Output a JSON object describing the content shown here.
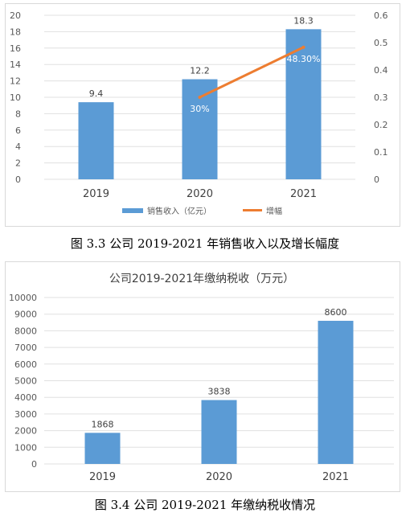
{
  "colors": {
    "bar": "#5b9bd5",
    "line": "#ed7d31",
    "grid": "#e0e0e0",
    "axis_text": "#595959"
  },
  "chart_data": [
    {
      "type": "bar",
      "title": "",
      "categories": [
        "2019",
        "2020",
        "2021"
      ],
      "series": [
        {
          "name": "销售收入（亿元）",
          "type": "bar",
          "axis": "left",
          "values": [
            9.4,
            12.2,
            18.3
          ],
          "labels": [
            "9.4",
            "12.2",
            "18.3"
          ]
        },
        {
          "name": "增幅",
          "type": "line",
          "axis": "right",
          "x": [
            "2020",
            "2021"
          ],
          "values": [
            0.3,
            0.483
          ],
          "labels": [
            "30%",
            "48.30%"
          ]
        }
      ],
      "ylim": [
        0,
        20
      ],
      "yticks": [
        "0",
        "2",
        "4",
        "6",
        "8",
        "10",
        "12",
        "14",
        "16",
        "18",
        "20"
      ],
      "y2lim": [
        0,
        0.6
      ],
      "y2ticks": [
        "0",
        "0.1",
        "0.2",
        "0.3",
        "0.4",
        "0.5",
        "0.6"
      ],
      "grid": true,
      "legend": "bottom",
      "caption": "图 3.3 公司 2019-2021 年销售收入以及增长幅度"
    },
    {
      "type": "bar",
      "title": "公司2019-2021年缴纳税收（万元）",
      "categories": [
        "2019",
        "2020",
        "2021"
      ],
      "values": [
        1868,
        3838,
        8600
      ],
      "labels": [
        "1868",
        "3838",
        "8600"
      ],
      "ylim": [
        0,
        10000
      ],
      "yticks": [
        "0",
        "1000",
        "2000",
        "3000",
        "4000",
        "5000",
        "6000",
        "7000",
        "8000",
        "9000",
        "10000"
      ],
      "grid": true,
      "caption": "图 3.4 公司 2019-2021 年缴纳税收情况"
    }
  ]
}
